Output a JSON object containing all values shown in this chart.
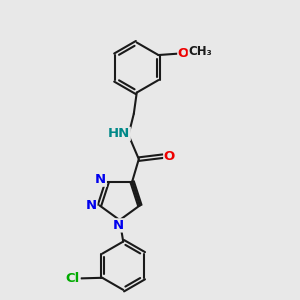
{
  "background_color": "#ebebeb",
  "bond_color": "#1a1a1a",
  "bond_width": 1.5,
  "dbo": 0.06,
  "atom_colors": {
    "N": "#0000ee",
    "O": "#ee0000",
    "Cl": "#00aa00",
    "HN": "#008888",
    "C": "#1a1a1a"
  },
  "fs": 9.5,
  "fig_bg": "#e8e8e8"
}
